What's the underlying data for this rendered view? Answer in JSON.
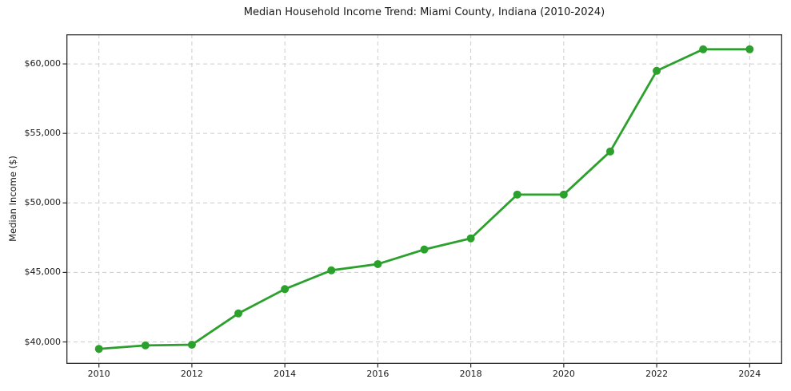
{
  "title": "Median Household Income Trend: Miami County, Indiana (2010-2024)",
  "ylabel": "Median Income ($)",
  "chart_data": {
    "type": "line",
    "title": "Median Household Income Trend: Miami County, Indiana (2010-2024)",
    "xlabel": "",
    "ylabel": "Median Income ($)",
    "x": [
      2010,
      2011,
      2012,
      2013,
      2014,
      2015,
      2016,
      2017,
      2018,
      2019,
      2020,
      2021,
      2022,
      2023,
      2024
    ],
    "values": [
      39500,
      39750,
      39800,
      42050,
      43800,
      45150,
      45600,
      46650,
      47450,
      50600,
      50600,
      53700,
      59500,
      61050,
      61050
    ],
    "x_tick_labels": [
      "2010",
      "2012",
      "2014",
      "2016",
      "2018",
      "2020",
      "2022",
      "2024"
    ],
    "x_ticks": [
      2010,
      2012,
      2014,
      2016,
      2018,
      2020,
      2022,
      2024
    ],
    "y_tick_labels": [
      "$40,000",
      "$45,000",
      "$50,000",
      "$55,000",
      "$60,000"
    ],
    "y_ticks": [
      40000,
      45000,
      50000,
      55000,
      60000
    ],
    "xlim": [
      2009.3,
      2024.7
    ],
    "ylim": [
      38422,
      62128
    ],
    "grid": true,
    "legend": "none",
    "line_color": "#2ca02c",
    "marker_color": "#2ca02c",
    "grid_color": "#cccccc",
    "spine_color": "#2b2b2b"
  }
}
